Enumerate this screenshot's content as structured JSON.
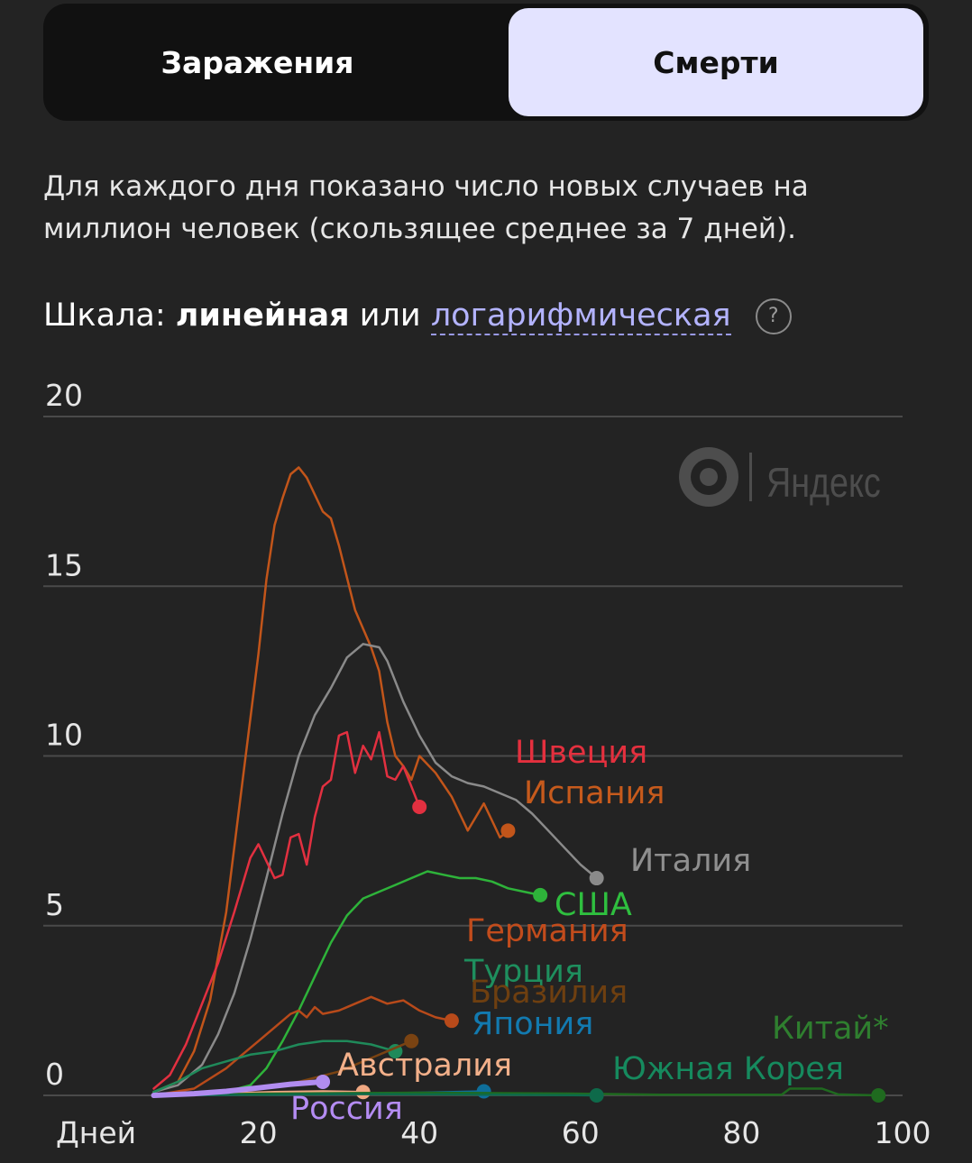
{
  "tabs": {
    "infections": "Заражения",
    "deaths": "Смерти",
    "active": "deaths"
  },
  "description": "Для каждого дня показано число новых случаев на миллион человек (скользящее среднее за 7 дней).",
  "scale": {
    "prefix": "Шкала:",
    "linear": "линейная",
    "or": "или",
    "log": "логарифмическая",
    "help_icon": "question-icon",
    "help_text": "?"
  },
  "watermark": "Яндекс",
  "colors": {
    "background": "#232323",
    "grid": "#4a4a4a"
  },
  "chart_data": {
    "type": "line",
    "xlabel": "Дней",
    "ylabel": "",
    "xlim": [
      0,
      100
    ],
    "ylim": [
      0,
      20
    ],
    "x_ticks": [
      20,
      40,
      60,
      80,
      100
    ],
    "y_ticks": [
      0,
      5,
      10,
      15,
      20
    ],
    "grid": true,
    "series": [
      {
        "name": "Испания",
        "color": "#c2551a",
        "label_color": "#c65a1c",
        "x": [
          7,
          10,
          12,
          14,
          16,
          18,
          20,
          21,
          22,
          23,
          24,
          25,
          26,
          28,
          29,
          30,
          32,
          34,
          35,
          36,
          37,
          38,
          39,
          40,
          42,
          44,
          46,
          48,
          49,
          50,
          51
        ],
        "y": [
          0.1,
          0.4,
          1.3,
          2.8,
          5.4,
          9.2,
          13,
          15.2,
          16.8,
          17.6,
          18.3,
          18.5,
          18.2,
          17.2,
          17,
          16.2,
          14.3,
          13.2,
          12.5,
          11,
          10,
          9.7,
          9.3,
          10,
          9.5,
          8.8,
          7.8,
          8.6,
          8.1,
          7.6,
          7.8
        ]
      },
      {
        "name": "Италия",
        "color": "#8a8a8a",
        "label_color": "#8f8f8f",
        "x": [
          7,
          10,
          13,
          15,
          17,
          19,
          21,
          23,
          25,
          27,
          29,
          31,
          33,
          35,
          36,
          37,
          38,
          40,
          42,
          44,
          46,
          48,
          50,
          52,
          54,
          56,
          58,
          60,
          62
        ],
        "y": [
          0.1,
          0.3,
          0.9,
          1.8,
          3,
          4.6,
          6.4,
          8.3,
          10,
          11.2,
          12,
          12.9,
          13.3,
          13.2,
          12.8,
          12.2,
          11.6,
          10.6,
          9.8,
          9.4,
          9.2,
          9.1,
          8.9,
          8.7,
          8.3,
          7.8,
          7.3,
          6.8,
          6.4
        ]
      },
      {
        "name": "Швеция",
        "color": "#e23040",
        "label_color": "#e4303e",
        "x": [
          7,
          9,
          11,
          13,
          15,
          17,
          19,
          20,
          21,
          22,
          23,
          24,
          25,
          26,
          27,
          28,
          29,
          30,
          31,
          32,
          33,
          34,
          35,
          36,
          37,
          38,
          39,
          40
        ],
        "y": [
          0.2,
          0.6,
          1.5,
          2.7,
          3.9,
          5.4,
          7,
          7.4,
          6.9,
          6.4,
          6.5,
          7.6,
          7.7,
          6.8,
          8.2,
          9.1,
          9.3,
          10.6,
          10.7,
          9.5,
          10.3,
          9.9,
          10.7,
          9.4,
          9.3,
          9.7,
          9.1,
          8.5
        ]
      },
      {
        "name": "США",
        "color": "#2eb33a",
        "label_color": "#2fbf3f",
        "x": [
          7,
          15,
          19,
          21,
          23,
          25,
          27,
          29,
          31,
          33,
          35,
          37,
          39,
          41,
          43,
          45,
          47,
          49,
          51,
          53,
          55
        ],
        "y": [
          0,
          0.05,
          0.3,
          0.8,
          1.6,
          2.5,
          3.5,
          4.5,
          5.3,
          5.8,
          6,
          6.2,
          6.4,
          6.6,
          6.5,
          6.4,
          6.4,
          6.3,
          6.1,
          6,
          5.9
        ]
      },
      {
        "name": "Германия",
        "color": "#b84a1a",
        "label_color": "#c24c1c",
        "x": [
          7,
          12,
          16,
          18,
          20,
          22,
          24,
          25,
          26,
          27,
          28,
          30,
          32,
          34,
          36,
          38,
          40,
          42,
          44
        ],
        "y": [
          0,
          0.2,
          0.8,
          1.2,
          1.6,
          2,
          2.4,
          2.5,
          2.3,
          2.6,
          2.4,
          2.5,
          2.7,
          2.9,
          2.7,
          2.8,
          2.5,
          2.3,
          2.2
        ]
      },
      {
        "name": "Турция",
        "color": "#1f8a5a",
        "label_color": "#1e8f5e",
        "x": [
          7,
          10,
          13,
          16,
          19,
          22,
          25,
          28,
          31,
          34,
          37
        ],
        "y": [
          0.1,
          0.4,
          0.8,
          1,
          1.2,
          1.3,
          1.5,
          1.6,
          1.6,
          1.5,
          1.3
        ]
      },
      {
        "name": "Бразилия",
        "color": "#7a4312",
        "label_color": "#6e3f10",
        "x": [
          7,
          15,
          20,
          25,
          30,
          34,
          37,
          39
        ],
        "y": [
          0,
          0.05,
          0.2,
          0.4,
          0.7,
          1.1,
          1.4,
          1.6
        ]
      },
      {
        "name": "Япония",
        "color": "#0e6e9a",
        "label_color": "#127ab0",
        "x": [
          7,
          20,
          30,
          40,
          48
        ],
        "y": [
          0,
          0.02,
          0.04,
          0.08,
          0.12
        ]
      },
      {
        "name": "Австралия",
        "color": "#f0a882",
        "label_color": "#f3b08a",
        "x": [
          7,
          15,
          22,
          28,
          33
        ],
        "y": [
          0,
          0.05,
          0.1,
          0.12,
          0.1
        ]
      },
      {
        "name": "Китай*",
        "color": "#1f6a1f",
        "label_color": "#2f7f2f",
        "x": [
          7,
          20,
          40,
          60,
          70,
          85,
          86,
          90,
          92,
          97
        ],
        "y": [
          0,
          0.05,
          0.08,
          0.05,
          0.02,
          0.02,
          0.2,
          0.2,
          0.03,
          0
        ]
      },
      {
        "name": "Южная Корея",
        "color": "#0e6a4a",
        "label_color": "#168a5e",
        "x": [
          7,
          20,
          30,
          40,
          50,
          62
        ],
        "y": [
          0,
          0.02,
          0.04,
          0.03,
          0.02,
          0
        ]
      },
      {
        "name": "Россия",
        "color": "#b18cf0",
        "label_color": "#b48cf2",
        "x": [
          7,
          12,
          16,
          20,
          24,
          28
        ],
        "y": [
          0,
          0.05,
          0.12,
          0.22,
          0.33,
          0.4
        ]
      }
    ]
  }
}
